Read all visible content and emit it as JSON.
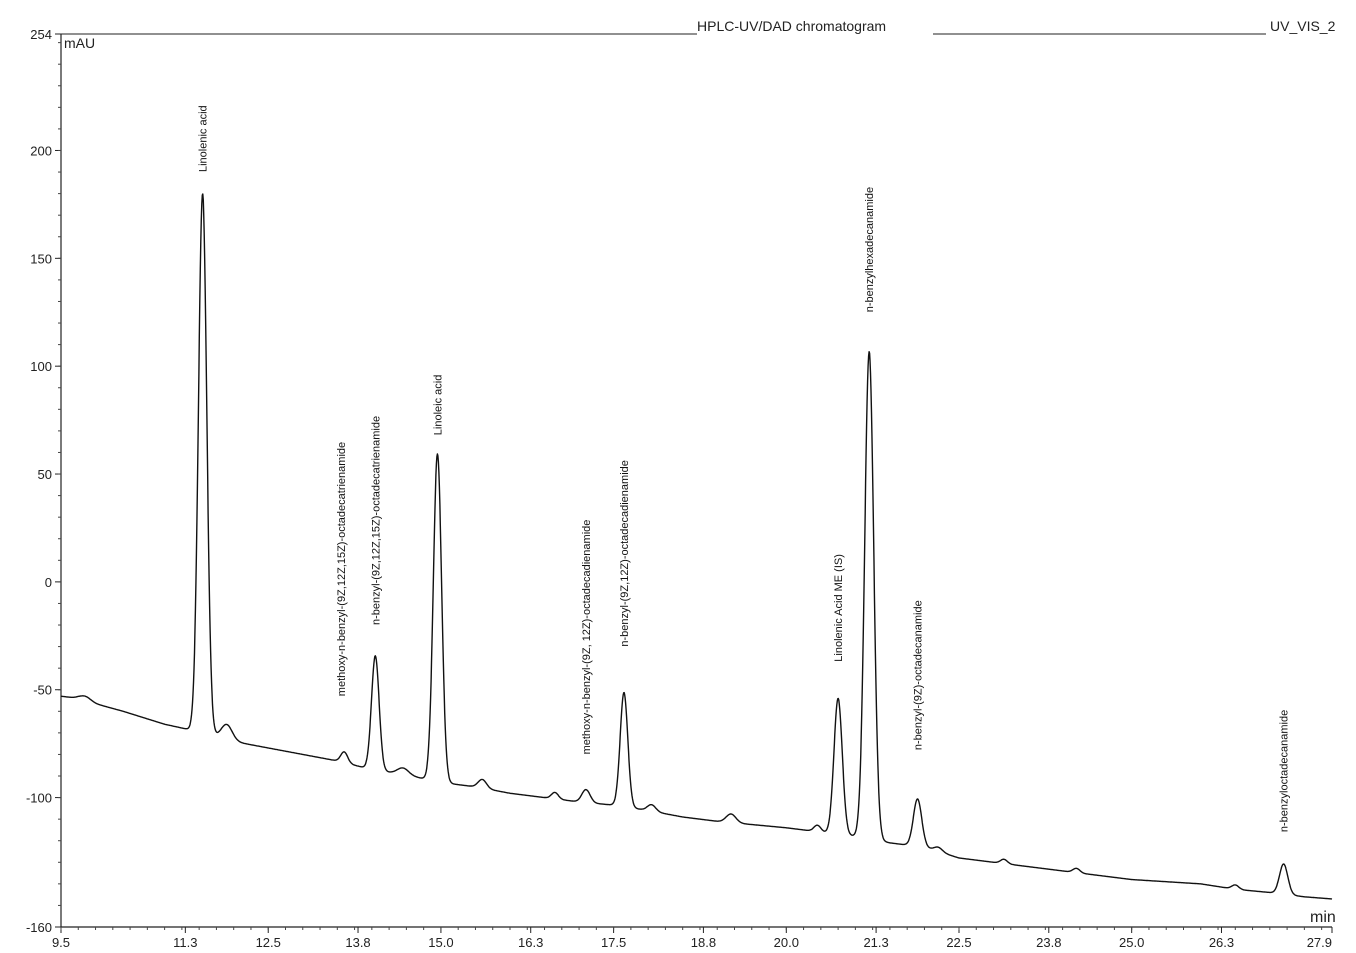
{
  "chart_data": {
    "type": "line",
    "title": "HPLC-UV/DAD chromatogram",
    "channel": "UV_VIS_2",
    "xlabel": "min",
    "ylabel": "mAU",
    "xlim": [
      9.5,
      27.9
    ],
    "ylim": [
      -160,
      254
    ],
    "x_ticks": [
      9.5,
      11.3,
      12.5,
      13.8,
      15.0,
      16.3,
      17.5,
      18.8,
      20.0,
      21.3,
      22.5,
      23.8,
      25.0,
      26.3,
      27.9
    ],
    "x_tick_labels": [
      "9.5",
      "11.3",
      "12.5",
      "13.8",
      "15.0",
      "16.3",
      "17.5",
      "18.8",
      "20.0",
      "21.3",
      "22.5",
      "23.8",
      "25.0",
      "26.3",
      "27.9"
    ],
    "y_ticks": [
      -160,
      -100,
      -50,
      0,
      50,
      100,
      150,
      200,
      254
    ],
    "y_tick_labels": [
      "-160",
      "-100",
      "-50",
      "0",
      "50",
      "100",
      "150",
      "200",
      "254"
    ],
    "baseline": [
      [
        9.5,
        -53
      ],
      [
        9.75,
        -54
      ],
      [
        10.0,
        -56.5
      ],
      [
        10.4,
        -60
      ],
      [
        11.0,
        -66
      ],
      [
        11.5,
        -69.5
      ],
      [
        12.0,
        -74
      ],
      [
        12.5,
        -77
      ],
      [
        13.0,
        -80
      ],
      [
        13.5,
        -83
      ],
      [
        14.0,
        -87
      ],
      [
        14.5,
        -89.5
      ],
      [
        15.0,
        -93
      ],
      [
        15.5,
        -95
      ],
      [
        16.0,
        -98
      ],
      [
        16.5,
        -100
      ],
      [
        17.0,
        -102
      ],
      [
        17.5,
        -103.5
      ],
      [
        18.0,
        -106
      ],
      [
        18.5,
        -109
      ],
      [
        19.0,
        -111
      ],
      [
        19.5,
        -112.5
      ],
      [
        20.0,
        -114
      ],
      [
        20.5,
        -116
      ],
      [
        21.0,
        -118
      ],
      [
        21.5,
        -121
      ],
      [
        22.0,
        -123
      ],
      [
        22.5,
        -128
      ],
      [
        23.0,
        -130
      ],
      [
        23.5,
        -132
      ],
      [
        24.0,
        -134
      ],
      [
        24.5,
        -136
      ],
      [
        25.0,
        -138
      ],
      [
        25.5,
        -139
      ],
      [
        26.0,
        -140
      ],
      [
        26.5,
        -142.5
      ],
      [
        27.0,
        -144
      ],
      [
        27.5,
        -146
      ],
      [
        27.9,
        -147
      ]
    ],
    "peaks": [
      {
        "rt": 9.85,
        "height": 2,
        "width": 0.08
      },
      {
        "rt": 11.55,
        "height": 250,
        "width": 0.06
      },
      {
        "rt": 11.9,
        "height": 7,
        "width": 0.08
      },
      {
        "rt": 13.6,
        "height": 5,
        "width": 0.05
      },
      {
        "rt": 14.05,
        "height": 53,
        "width": 0.055
      },
      {
        "rt": 14.45,
        "height": 3,
        "width": 0.08
      },
      {
        "rt": 14.95,
        "height": 152,
        "width": 0.06
      },
      {
        "rt": 15.6,
        "height": 4,
        "width": 0.06
      },
      {
        "rt": 16.65,
        "height": 3,
        "width": 0.05
      },
      {
        "rt": 17.1,
        "height": 6,
        "width": 0.06
      },
      {
        "rt": 17.65,
        "height": 53,
        "width": 0.055
      },
      {
        "rt": 18.05,
        "height": 3,
        "width": 0.06
      },
      {
        "rt": 19.2,
        "height": 4,
        "width": 0.07
      },
      {
        "rt": 20.45,
        "height": 3,
        "width": 0.05
      },
      {
        "rt": 20.75,
        "height": 63,
        "width": 0.06
      },
      {
        "rt": 21.2,
        "height": 226,
        "width": 0.065
      },
      {
        "rt": 21.9,
        "height": 22,
        "width": 0.06
      },
      {
        "rt": 22.2,
        "height": 2,
        "width": 0.06
      },
      {
        "rt": 23.15,
        "height": 2,
        "width": 0.05
      },
      {
        "rt": 24.2,
        "height": 2,
        "width": 0.05
      },
      {
        "rt": 26.5,
        "height": 2,
        "width": 0.05
      },
      {
        "rt": 27.2,
        "height": 14,
        "width": 0.06
      }
    ],
    "annotations": [
      {
        "text": "Linolenic acid",
        "x": 11.55,
        "y": 190
      },
      {
        "text": "methoxy-n-benzyl-(9Z,12Z,15Z)-octadecatrienamide",
        "x": 13.55,
        "y": -53
      },
      {
        "text": "n-benzyl-(9Z,12Z,15Z)-octadecatrienamide",
        "x": 14.05,
        "y": -20
      },
      {
        "text": "Linoleic acid",
        "x": 14.95,
        "y": 68
      },
      {
        "text": "methoxy-n-benzyl-(9Z, 12Z)-octadecadienamide",
        "x": 17.1,
        "y": -80
      },
      {
        "text": "n-benzyl-(9Z,12Z)-octadecadienamide",
        "x": 17.65,
        "y": -30
      },
      {
        "text": "Linolenic Acid ME (IS)",
        "x": 20.75,
        "y": -37
      },
      {
        "text": "n-benzylhexadecanamide",
        "x": 21.2,
        "y": 125
      },
      {
        "text": "n-benzyl-(9Z)-octadecanamide",
        "x": 21.9,
        "y": -78
      },
      {
        "text": "n-benzyloctadecanamide",
        "x": 27.2,
        "y": -116
      }
    ],
    "grid": false,
    "legend": "none"
  }
}
